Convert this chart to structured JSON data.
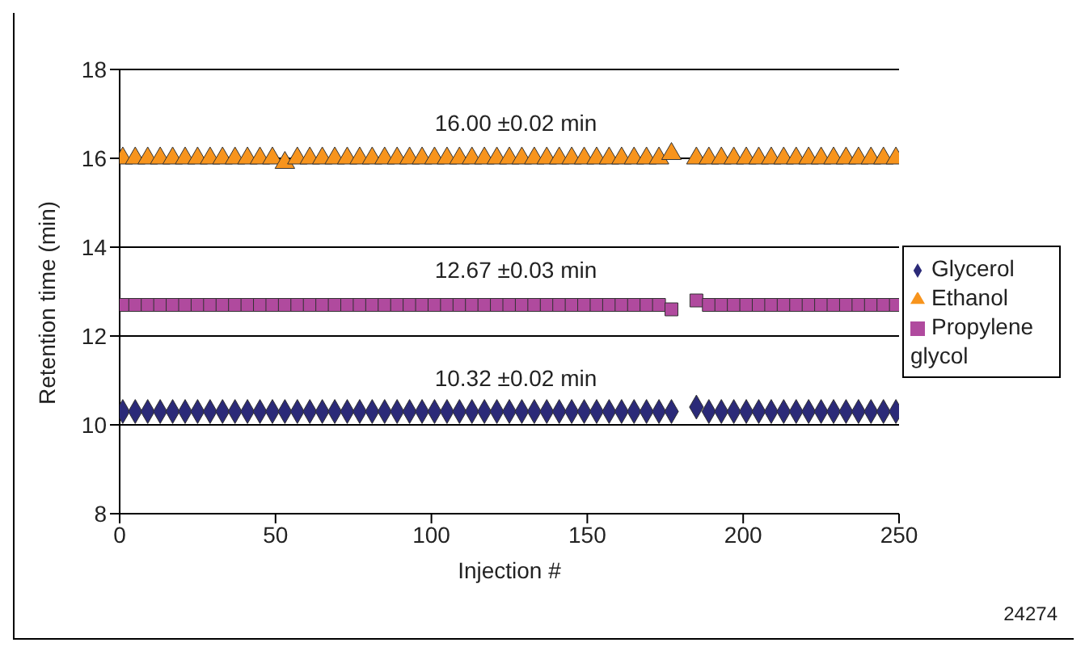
{
  "chart_data": {
    "type": "scatter",
    "xlabel": "Injection #",
    "ylabel": "Retention time (min)",
    "x": [
      1,
      5,
      9,
      13,
      17,
      21,
      25,
      29,
      33,
      37,
      41,
      45,
      49,
      53,
      57,
      61,
      65,
      69,
      73,
      77,
      81,
      85,
      89,
      93,
      97,
      101,
      105,
      109,
      113,
      117,
      121,
      125,
      129,
      133,
      137,
      141,
      145,
      149,
      153,
      157,
      161,
      165,
      169,
      173,
      177,
      185,
      189,
      193,
      197,
      201,
      205,
      209,
      213,
      217,
      221,
      225,
      229,
      233,
      237,
      241,
      245,
      249
    ],
    "series": [
      {
        "name": "Glycerol",
        "color": "#2b2a78",
        "marker": "diamond",
        "values": [
          10.3,
          10.3,
          10.3,
          10.3,
          10.3,
          10.3,
          10.3,
          10.3,
          10.3,
          10.3,
          10.3,
          10.3,
          10.3,
          10.3,
          10.3,
          10.3,
          10.3,
          10.3,
          10.3,
          10.3,
          10.3,
          10.3,
          10.3,
          10.3,
          10.3,
          10.3,
          10.3,
          10.3,
          10.3,
          10.3,
          10.3,
          10.3,
          10.3,
          10.3,
          10.3,
          10.3,
          10.3,
          10.3,
          10.3,
          10.3,
          10.3,
          10.3,
          10.3,
          10.3,
          10.3,
          10.4,
          10.3,
          10.3,
          10.3,
          10.3,
          10.3,
          10.3,
          10.3,
          10.3,
          10.3,
          10.3,
          10.3,
          10.3,
          10.3,
          10.3,
          10.3,
          10.3
        ]
      },
      {
        "name": "Ethanol",
        "color": "#f7941d",
        "marker": "triangle",
        "values": [
          16.0,
          16.0,
          16.0,
          16.0,
          16.0,
          16.0,
          16.0,
          16.0,
          16.0,
          16.0,
          16.0,
          16.0,
          16.0,
          15.9,
          16.0,
          16.0,
          16.0,
          16.0,
          16.0,
          16.0,
          16.0,
          16.0,
          16.0,
          16.0,
          16.0,
          16.0,
          16.0,
          16.0,
          16.0,
          16.0,
          16.0,
          16.0,
          16.0,
          16.0,
          16.0,
          16.0,
          16.0,
          16.0,
          16.0,
          16.0,
          16.0,
          16.0,
          16.0,
          16.0,
          16.1,
          16.0,
          16.0,
          16.0,
          16.0,
          16.0,
          16.0,
          16.0,
          16.0,
          16.0,
          16.0,
          16.0,
          16.0,
          16.0,
          16.0,
          16.0,
          16.0,
          16.0
        ]
      },
      {
        "name": "Propylene glycol",
        "color": "#b04a9e",
        "marker": "square",
        "values": [
          12.7,
          12.7,
          12.7,
          12.7,
          12.7,
          12.7,
          12.7,
          12.7,
          12.7,
          12.7,
          12.7,
          12.7,
          12.7,
          12.7,
          12.7,
          12.7,
          12.7,
          12.7,
          12.7,
          12.7,
          12.7,
          12.7,
          12.7,
          12.7,
          12.7,
          12.7,
          12.7,
          12.7,
          12.7,
          12.7,
          12.7,
          12.7,
          12.7,
          12.7,
          12.7,
          12.7,
          12.7,
          12.7,
          12.7,
          12.7,
          12.7,
          12.7,
          12.7,
          12.7,
          12.6,
          12.8,
          12.7,
          12.7,
          12.7,
          12.7,
          12.7,
          12.7,
          12.7,
          12.7,
          12.7,
          12.7,
          12.7,
          12.7,
          12.7,
          12.7,
          12.7,
          12.7
        ]
      }
    ],
    "xlim": [
      0,
      250
    ],
    "xticks": [
      0,
      50,
      100,
      150,
      200,
      250
    ],
    "ylim": [
      8,
      18
    ],
    "yticks": [
      8,
      10,
      12,
      14,
      16,
      18
    ],
    "grid": "y",
    "legend": "right",
    "annotations": [
      "16.00 ±0.02 min",
      "12.67 ±0.03 min",
      "10.32 ±0.02 min",
      "24274"
    ]
  }
}
